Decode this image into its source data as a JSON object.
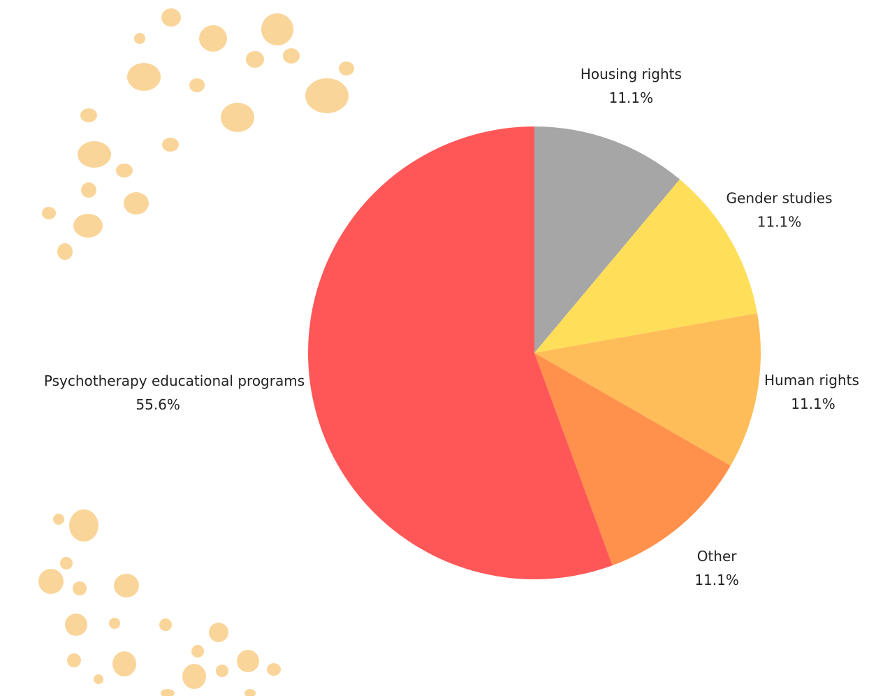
{
  "chart_data": {
    "type": "pie",
    "categories": [
      "Housing rights",
      "Gender studies",
      "Human rights",
      "Other",
      "Psychotherapy educational programs"
    ],
    "values": [
      11.1,
      11.1,
      11.1,
      11.1,
      55.6
    ],
    "value_labels": [
      "11.1%",
      "11.1%",
      "11.1%",
      "11.1%",
      "55.6%"
    ],
    "colors": [
      "#a6a6a6",
      "#ffde59",
      "#ffbd59",
      "#ff914d",
      "#ff5757"
    ]
  }
}
